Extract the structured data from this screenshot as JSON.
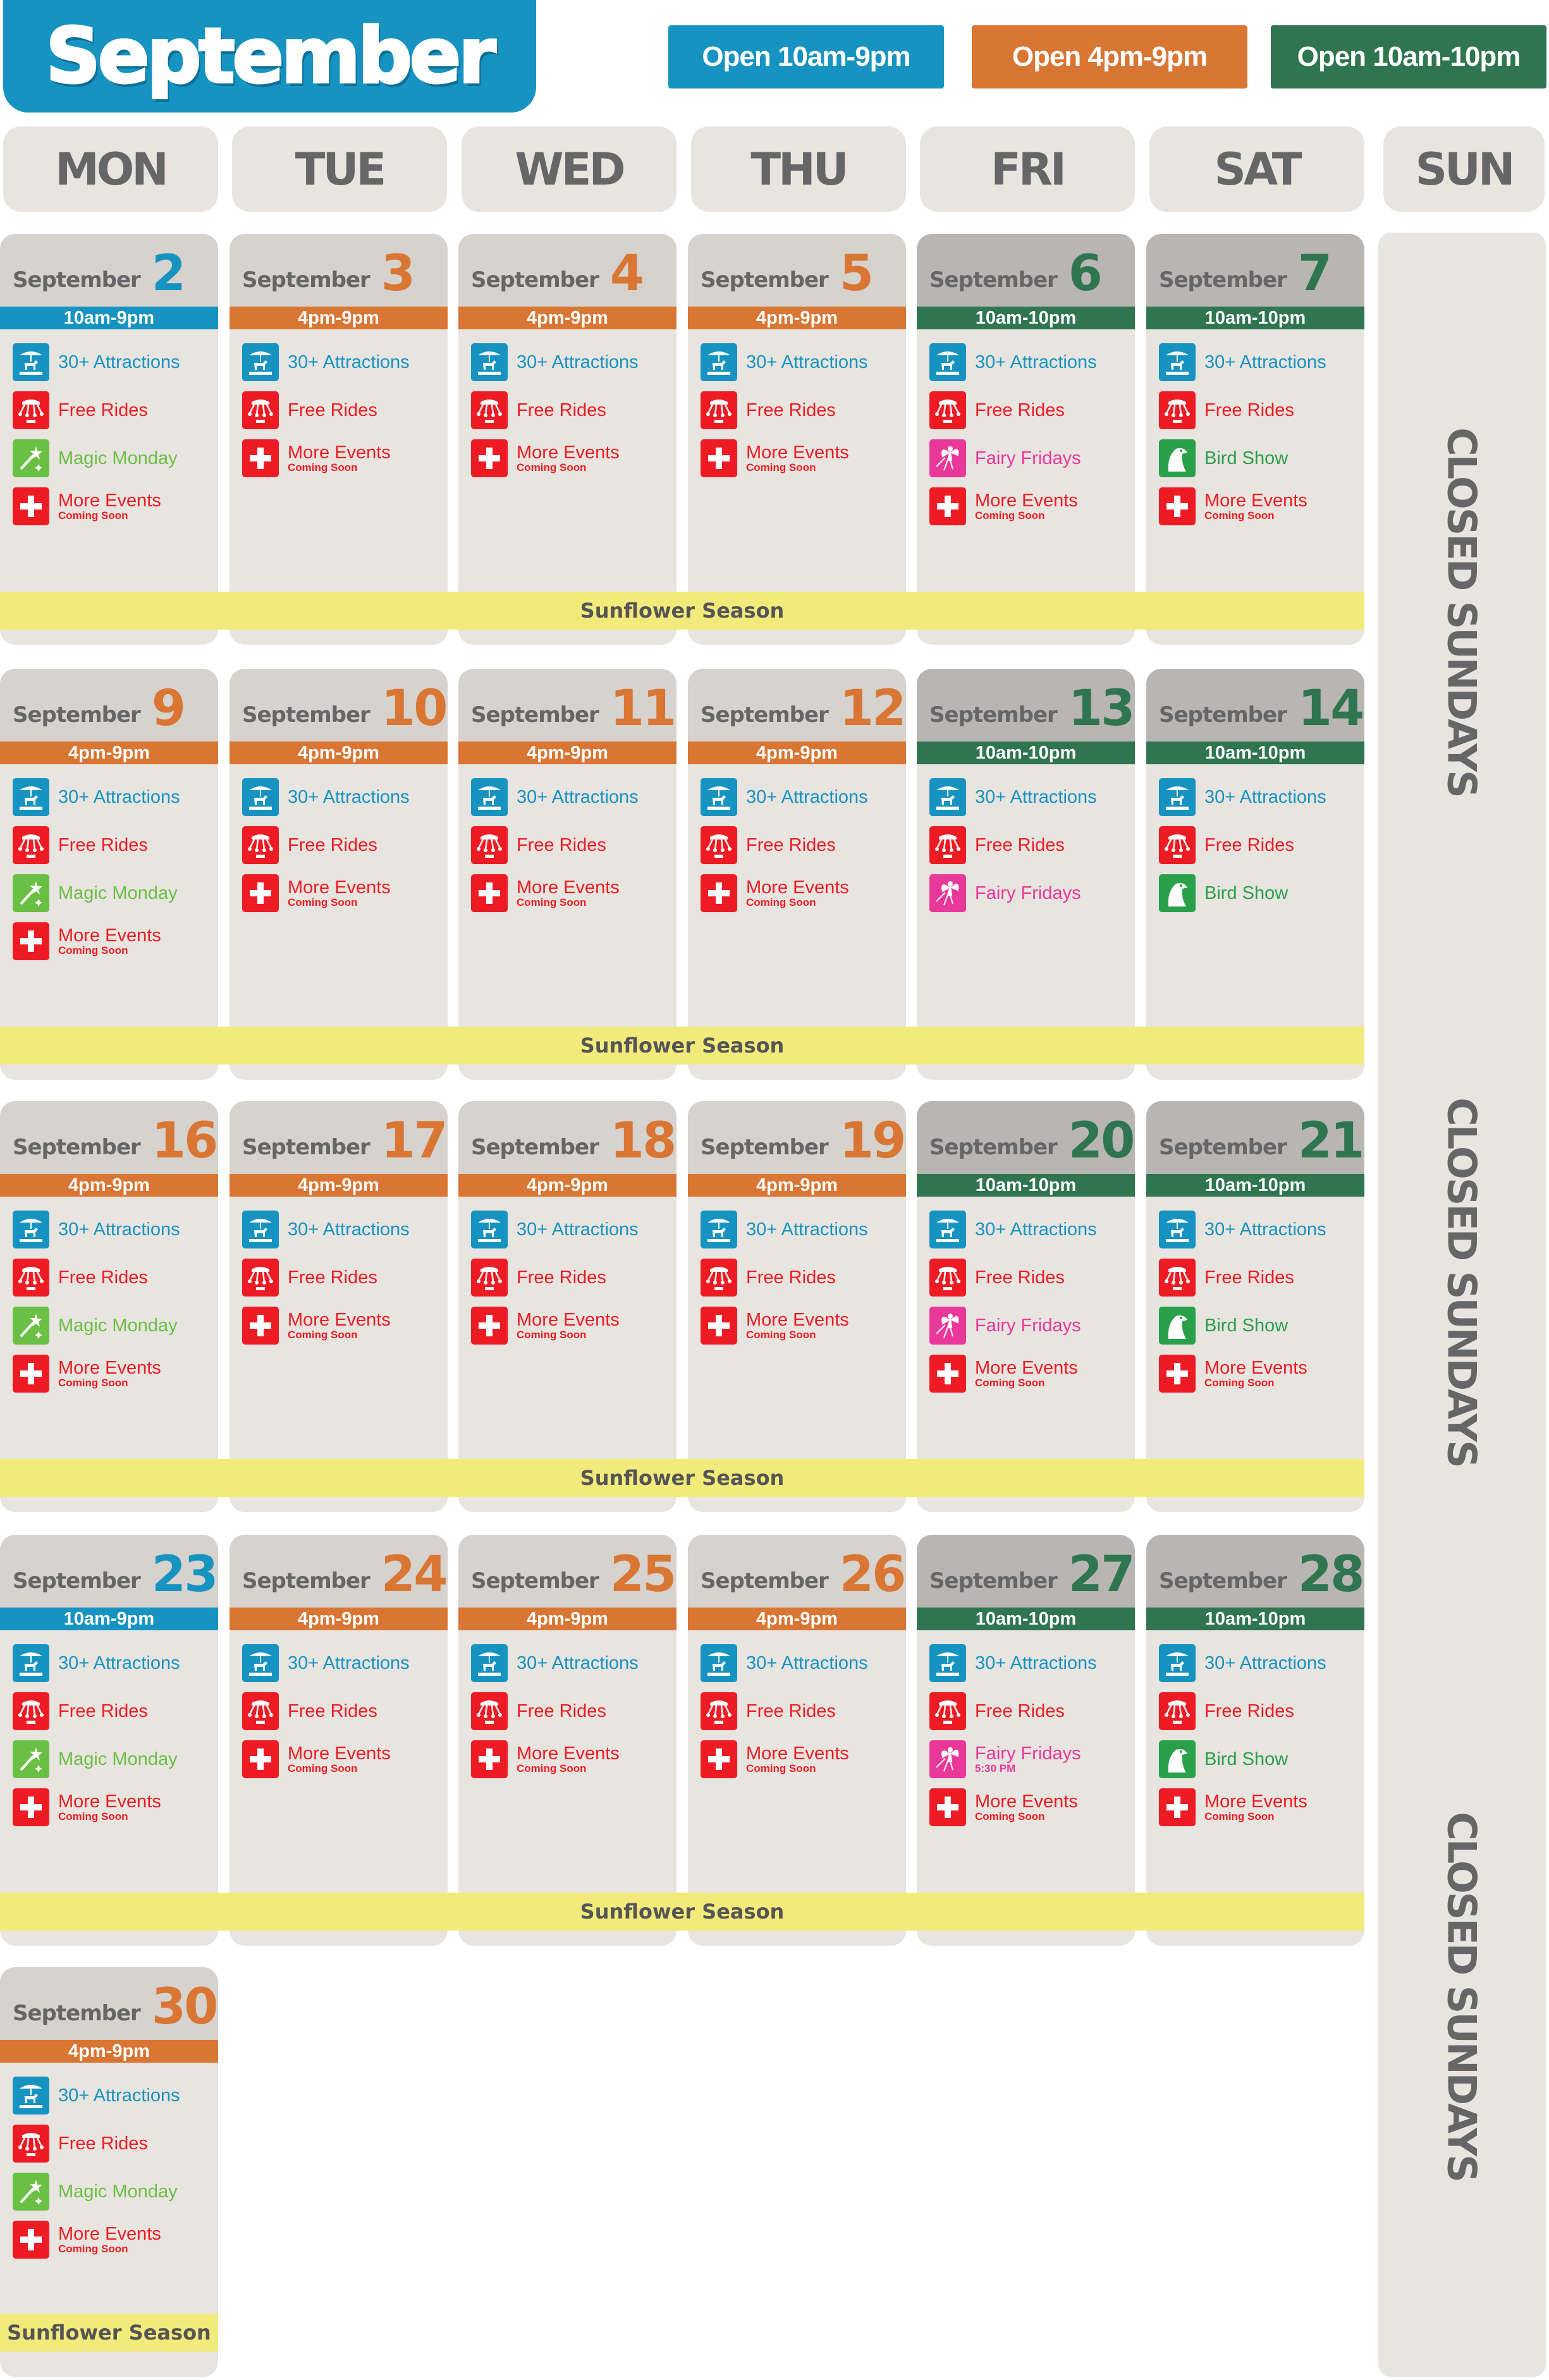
{
  "title": "September",
  "colors": {
    "blue": "#1793c1",
    "orange": "#d97634",
    "green": "#2e7550",
    "red": "#ed1c24",
    "pink": "#e8389a",
    "bird_green": "#2aa04a",
    "magic_green": "#6abf45"
  },
  "legend": [
    {
      "label": "Open 10am-9pm",
      "color": "#1793c1"
    },
    {
      "label": "Open 4pm-9pm",
      "color": "#d97634"
    },
    {
      "label": "Open 10am-10pm",
      "color": "#2e7550"
    }
  ],
  "weekdays": [
    "MON",
    "TUE",
    "WED",
    "THU",
    "FRI",
    "SAT",
    "SUN"
  ],
  "month_label": "September",
  "band_label": "Sunflower Season",
  "closed_label": "CLOSED SUNDAYS",
  "hours": {
    "blue": "10am-9pm",
    "orange": "4pm-9pm",
    "green": "10am-10pm"
  },
  "item_types": {
    "attractions": {
      "label": "30+ Attractions",
      "color": "#1793c1",
      "icon": "carousel-icon"
    },
    "rides": {
      "label": "Free Rides",
      "color": "#ed1c24",
      "icon": "swing-ride-icon"
    },
    "magic": {
      "label": "Magic Monday",
      "color": "#6abf45",
      "icon": "magic-wand-icon"
    },
    "fairy": {
      "label": "Fairy Fridays",
      "color": "#e8389a",
      "icon": "fairy-icon"
    },
    "bird": {
      "label": "Bird Show",
      "color": "#2aa04a",
      "icon": "eagle-icon"
    },
    "more": {
      "label": "More Events",
      "sub": "Coming Soon",
      "color": "#ed1c24",
      "icon": "plus-icon"
    }
  },
  "weeks": [
    [
      {
        "day": "2",
        "hours": "blue",
        "items": [
          "attractions",
          "rides",
          "magic",
          "more"
        ]
      },
      {
        "day": "3",
        "hours": "orange",
        "items": [
          "attractions",
          "rides",
          "more"
        ]
      },
      {
        "day": "4",
        "hours": "orange",
        "items": [
          "attractions",
          "rides",
          "more"
        ]
      },
      {
        "day": "5",
        "hours": "orange",
        "items": [
          "attractions",
          "rides",
          "more"
        ]
      },
      {
        "day": "6",
        "hours": "green",
        "items": [
          "attractions",
          "rides",
          "fairy",
          "more"
        ]
      },
      {
        "day": "7",
        "hours": "green",
        "items": [
          "attractions",
          "rides",
          "bird",
          "more"
        ]
      }
    ],
    [
      {
        "day": "9",
        "hours": "orange",
        "items": [
          "attractions",
          "rides",
          "magic",
          "more"
        ]
      },
      {
        "day": "10",
        "hours": "orange",
        "items": [
          "attractions",
          "rides",
          "more"
        ]
      },
      {
        "day": "11",
        "hours": "orange",
        "items": [
          "attractions",
          "rides",
          "more"
        ]
      },
      {
        "day": "12",
        "hours": "orange",
        "items": [
          "attractions",
          "rides",
          "more"
        ]
      },
      {
        "day": "13",
        "hours": "green",
        "items": [
          "attractions",
          "rides",
          "fairy"
        ]
      },
      {
        "day": "14",
        "hours": "green",
        "items": [
          "attractions",
          "rides",
          "bird"
        ]
      }
    ],
    [
      {
        "day": "16",
        "hours": "orange",
        "items": [
          "attractions",
          "rides",
          "magic",
          "more"
        ]
      },
      {
        "day": "17",
        "hours": "orange",
        "items": [
          "attractions",
          "rides",
          "more"
        ]
      },
      {
        "day": "18",
        "hours": "orange",
        "items": [
          "attractions",
          "rides",
          "more"
        ]
      },
      {
        "day": "19",
        "hours": "orange",
        "items": [
          "attractions",
          "rides",
          "more"
        ]
      },
      {
        "day": "20",
        "hours": "green",
        "items": [
          "attractions",
          "rides",
          "fairy",
          "more"
        ]
      },
      {
        "day": "21",
        "hours": "green",
        "items": [
          "attractions",
          "rides",
          "bird",
          "more"
        ]
      }
    ],
    [
      {
        "day": "23",
        "hours": "blue",
        "items": [
          "attractions",
          "rides",
          "magic",
          "more"
        ]
      },
      {
        "day": "24",
        "hours": "orange",
        "items": [
          "attractions",
          "rides",
          "more"
        ]
      },
      {
        "day": "25",
        "hours": "orange",
        "items": [
          "attractions",
          "rides",
          "more"
        ]
      },
      {
        "day": "26",
        "hours": "orange",
        "items": [
          "attractions",
          "rides",
          "more"
        ]
      },
      {
        "day": "27",
        "hours": "green",
        "items": [
          "attractions",
          "rides",
          "fairy",
          "more"
        ],
        "fairy_sub": "5:30 PM"
      },
      {
        "day": "28",
        "hours": "green",
        "items": [
          "attractions",
          "rides",
          "bird",
          "more"
        ]
      }
    ],
    [
      {
        "day": "30",
        "hours": "orange",
        "items": [
          "attractions",
          "rides",
          "magic",
          "more"
        ]
      }
    ]
  ]
}
